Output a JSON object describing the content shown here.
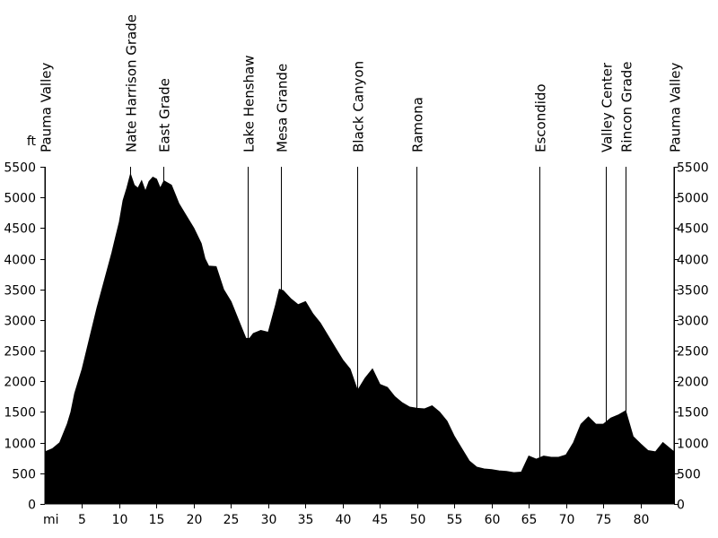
{
  "chart_data": {
    "type": "area",
    "title": "",
    "xlabel": "",
    "ylabel": "",
    "x_unit": "mi",
    "y_unit": "ft",
    "xlim": [
      0,
      84.5
    ],
    "ylim": [
      0,
      5500
    ],
    "x_ticks": [
      5,
      10,
      15,
      20,
      25,
      30,
      35,
      40,
      45,
      50,
      55,
      60,
      65,
      70,
      75,
      80
    ],
    "y_ticks": [
      0,
      500,
      1000,
      1500,
      2000,
      2500,
      3000,
      3500,
      4000,
      4500,
      5000,
      5500
    ],
    "grid": false,
    "fill_color": "#000000",
    "waypoints": [
      {
        "name": "Pauma Valley",
        "mile": 0
      },
      {
        "name": "Nate Harrison Grade",
        "mile": 11.5
      },
      {
        "name": "East Grade",
        "mile": 15.9
      },
      {
        "name": "Lake Henshaw",
        "mile": 27.3
      },
      {
        "name": "Mesa Grande",
        "mile": 31.7
      },
      {
        "name": "Black Canyon",
        "mile": 42.0
      },
      {
        "name": "Ramona",
        "mile": 49.9
      },
      {
        "name": "Escondido",
        "mile": 66.4
      },
      {
        "name": "Valley Center",
        "mile": 75.3
      },
      {
        "name": "Rincon Grade",
        "mile": 78.0
      },
      {
        "name": "Pauma Valley",
        "mile": 84.5
      }
    ],
    "series": [
      {
        "x": [
          0,
          1,
          1.5,
          2,
          3,
          3.5,
          4,
          4.5,
          5,
          6,
          7,
          8,
          9,
          9.5,
          10,
          10.5,
          11,
          11.5,
          12,
          12.5,
          13,
          13.5,
          14,
          14.5,
          15,
          15.5,
          16,
          17,
          17.5,
          18,
          19,
          20,
          21,
          21.5,
          22,
          23,
          24,
          25,
          26,
          27,
          27.5,
          28,
          29,
          30,
          31,
          31.5,
          32,
          33,
          34,
          35,
          36,
          37,
          38,
          39,
          40,
          41,
          42,
          43,
          44,
          45,
          46,
          47,
          48,
          49,
          50,
          51,
          52,
          53,
          54,
          55,
          56,
          57,
          58,
          59,
          60,
          61,
          62,
          63,
          64,
          65,
          66,
          67,
          68,
          69,
          70,
          71,
          72,
          73,
          74,
          75,
          76,
          77,
          78,
          79,
          80,
          81,
          82,
          83,
          84,
          84.5
        ],
        "y": [
          850,
          900,
          950,
          1000,
          1300,
          1500,
          1800,
          2000,
          2200,
          2700,
          3200,
          3650,
          4100,
          4350,
          4600,
          4950,
          5150,
          5380,
          5200,
          5150,
          5270,
          5100,
          5260,
          5330,
          5300,
          5150,
          5270,
          5200,
          5050,
          4900,
          4700,
          4500,
          4250,
          4000,
          3880,
          3870,
          3500,
          3300,
          3000,
          2700,
          2700,
          2780,
          2830,
          2800,
          3250,
          3500,
          3480,
          3350,
          3250,
          3300,
          3100,
          2950,
          2750,
          2550,
          2350,
          2200,
          1850,
          2050,
          2200,
          1950,
          1900,
          1750,
          1650,
          1580,
          1560,
          1550,
          1600,
          1500,
          1350,
          1100,
          900,
          700,
          600,
          570,
          560,
          540,
          530,
          510,
          520,
          780,
          730,
          780,
          760,
          760,
          800,
          1000,
          1300,
          1420,
          1300,
          1300,
          1400,
          1450,
          1520,
          1100,
          980,
          870,
          850,
          1000,
          900,
          850
        ]
      }
    ]
  }
}
